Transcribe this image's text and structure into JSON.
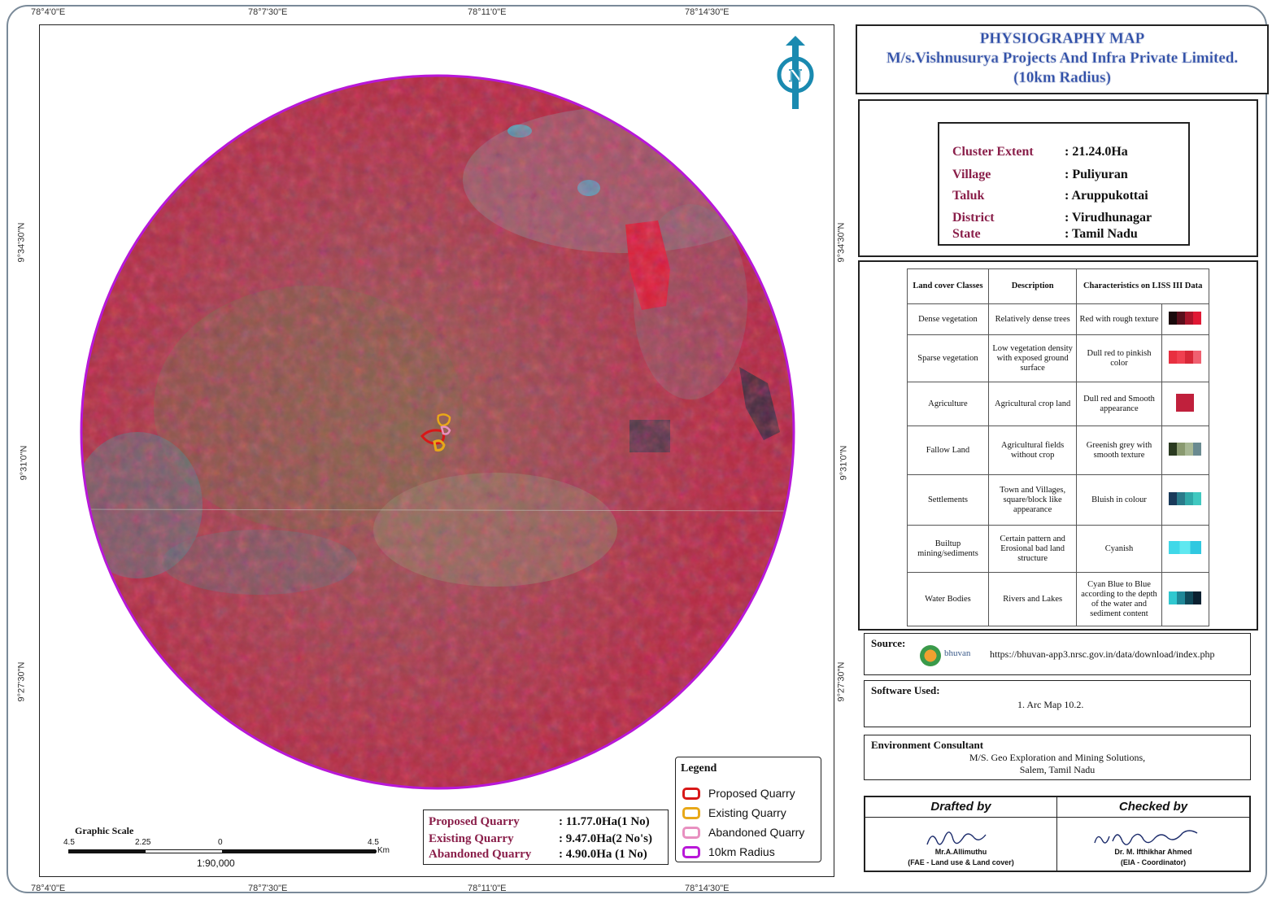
{
  "title": {
    "line1": "PHYSIOGRAPHY MAP",
    "line2": "M/s.Vishnusurya Projects And Infra Private Limited.",
    "line3": "(10km Radius)"
  },
  "coords": {
    "top": [
      "78°4'0\"E",
      "78°7'30\"E",
      "78°11'0\"E",
      "78°14'30\"E"
    ],
    "bottom": [
      "78°4'0\"E",
      "78°7'30\"E",
      "78°11'0\"E",
      "78°14'30\"E"
    ],
    "left": [
      "9°34'30\"N",
      "9°31'0\"N",
      "9°27'30\"N"
    ],
    "right": [
      "9°34'30\"N",
      "9°31'0\"N",
      "9°27'30\"N"
    ]
  },
  "north_arrow": {
    "letter": "N"
  },
  "info": [
    {
      "key": "Cluster Extent",
      "value": ": 21.24.0Ha"
    },
    {
      "key": "Village",
      "value": ": Puliyuran"
    },
    {
      "key": "Taluk",
      "value": ": Aruppukottai"
    },
    {
      "key": "District",
      "value": ": Virudhunagar"
    },
    {
      "key": "State",
      "value": ": Tamil Nadu"
    }
  ],
  "landcover": {
    "headers": [
      "Land cover Classes",
      "Description",
      "Characteristics on LISS III Data"
    ],
    "rows": [
      {
        "cls": "Dense vegetation",
        "desc": "Relatively dense trees",
        "char": "Red with rough texture",
        "colors": [
          "#1a0a0c",
          "#5a0f1c",
          "#a8142a",
          "#e01834"
        ]
      },
      {
        "cls": "Sparse vegetation",
        "desc": "Low vegetation density with exposed ground surface",
        "char": "Dull red to pinkish color",
        "colors": [
          "#e83040",
          "#f04050",
          "#d82838",
          "#f06070"
        ]
      },
      {
        "cls": "Agriculture",
        "desc": "Agricultural crop land",
        "char": "Dull red and Smooth appearance",
        "colors": [
          "#c0203c"
        ]
      },
      {
        "cls": "Fallow Land",
        "desc": "Agricultural fields without crop",
        "char": "Greenish grey with smooth texture",
        "colors": [
          "#2a3a20",
          "#8a9a70",
          "#a8b894",
          "#6a8a90"
        ]
      },
      {
        "cls": "Settlements",
        "desc": "Town and Villages, square/block like appearance",
        "char": "Bluish in colour",
        "colors": [
          "#1a3a5a",
          "#2a7a8a",
          "#30a8a8",
          "#40c8c0"
        ]
      },
      {
        "cls": "Builtup mining/sediments",
        "desc": "Certain pattern and Erosional bad land structure",
        "char": "Cyanish",
        "colors": [
          "#40d8e8",
          "#60e8f0",
          "#30c8e0"
        ]
      },
      {
        "cls": "Water Bodies",
        "desc": "Rivers and Lakes",
        "char": "Cyan Blue to Blue according to the depth of the water and sediment content",
        "colors": [
          "#30c8d0",
          "#208898",
          "#104858",
          "#0a2030"
        ]
      }
    ]
  },
  "source": {
    "label": "Source:",
    "logo_text": "bhuvan",
    "url": "https://bhuvan-app3.nrsc.gov.in/data/download/index.php"
  },
  "software": {
    "label": "Software Used:",
    "value": "1. Arc Map 10.2."
  },
  "consultant": {
    "label": "Environment Consultant",
    "line1": "M/S. Geo Exploration and Mining Solutions,",
    "line2": "Salem, Tamil Nadu"
  },
  "drafted": {
    "header": "Drafted by",
    "name": "Mr.A.Allimuthu",
    "role": "(FAE - Land use & Land cover)"
  },
  "checked": {
    "header": "Checked by",
    "name": "Dr. M. Ifthikhar Ahmed",
    "role": "(EIA - Coordinator)"
  },
  "legend": {
    "title": "Legend",
    "items": [
      {
        "label": "Proposed Quarry",
        "color": "#d81818"
      },
      {
        "label": "Existing Quarry",
        "color": "#e8a818"
      },
      {
        "label": "Abandoned Quarry",
        "color": "#e890c0"
      },
      {
        "label": "10km Radius",
        "color": "#b818d8"
      }
    ]
  },
  "areas": [
    {
      "key": "Proposed Quarry",
      "value": ": 11.77.0Ha(1 No)"
    },
    {
      "key": "Existing Quarry",
      "value": ": 9.47.0Ha(2 No's)"
    },
    {
      "key": "Abandoned Quarry",
      "value": ": 4.90.0Ha (1 No)"
    }
  ],
  "scale": {
    "title": "Graphic Scale",
    "ticks": [
      "4.5",
      "2.25",
      "0",
      "4.5"
    ],
    "unit": "Km",
    "ratio": "1:90,000"
  }
}
